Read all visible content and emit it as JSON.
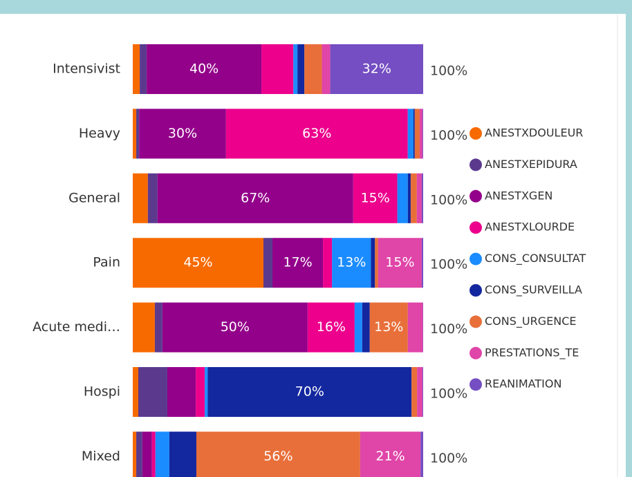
{
  "chart_data": {
    "type": "stacked_barh_100",
    "categories": [
      "Intensivist",
      "Heavy",
      "General",
      "Pain",
      "Acute medi…",
      "Hospi",
      "Mixed"
    ],
    "total_labels": [
      "100%",
      "100%",
      "100%",
      "100%",
      "100%",
      "100%",
      "100%"
    ],
    "series": [
      {
        "name": "ANESTXDOULEUR",
        "color": "#f76a00",
        "values": [
          2.4,
          1.2,
          5.2,
          45,
          7.6,
          1.9,
          1.2
        ],
        "value_labels": [
          null,
          null,
          null,
          "45%",
          null,
          null,
          null
        ]
      },
      {
        "name": "ANESTXEPIDURA",
        "color": "#5b3a8e",
        "values": [
          2.4,
          1,
          3.3,
          3.1,
          2.6,
          10,
          2.1
        ],
        "value_labels": [
          null,
          null,
          null,
          null,
          null,
          null,
          null
        ]
      },
      {
        "name": "ANESTXGEN",
        "color": "#93008a",
        "values": [
          39.5,
          29.9,
          67.4,
          17.4,
          50,
          9.8,
          3.3
        ],
        "value_labels": [
          "40%",
          "30%",
          "67%",
          "17%",
          "50%",
          null,
          null
        ]
      },
      {
        "name": "ANESTXLOURDE",
        "color": "#ec008c",
        "values": [
          11,
          62.6,
          15.2,
          3.1,
          16.2,
          3.1,
          1.2
        ],
        "value_labels": [
          null,
          "63%",
          "15%",
          null,
          "16%",
          null,
          null
        ]
      },
      {
        "name": "CONS_CONSULTAT",
        "color": "#1b8cff",
        "values": [
          1.4,
          1.9,
          3.6,
          13.4,
          2.6,
          1,
          4.8
        ],
        "value_labels": [
          null,
          null,
          null,
          "13%",
          null,
          null,
          null
        ]
      },
      {
        "name": "CONS_SURVEILLA",
        "color": "#13279f",
        "values": [
          2.4,
          0.5,
          1,
          1.4,
          2.6,
          70.2,
          9.3
        ],
        "value_labels": [
          null,
          null,
          null,
          null,
          null,
          "70%",
          null
        ]
      },
      {
        "name": "CONS_URGENCE",
        "color": "#e86f3a",
        "values": [
          6,
          1.7,
          2.1,
          1.1,
          13.1,
          1.9,
          56.4
        ],
        "value_labels": [
          null,
          null,
          null,
          null,
          "13%",
          null,
          "56%"
        ]
      },
      {
        "name": "PRESTATIONS_TE",
        "color": "#e045a8",
        "values": [
          2.9,
          1,
          1.7,
          15,
          5.2,
          1.9,
          20.8
        ],
        "value_labels": [
          null,
          null,
          null,
          "15%",
          null,
          null,
          "21%"
        ]
      },
      {
        "name": "REANIMATION",
        "color": "#744ec2",
        "values": [
          32,
          0.2,
          0.5,
          0.5,
          0.1,
          0.2,
          0.9
        ],
        "value_labels": [
          "32%",
          null,
          null,
          null,
          null,
          null,
          null
        ]
      }
    ]
  }
}
